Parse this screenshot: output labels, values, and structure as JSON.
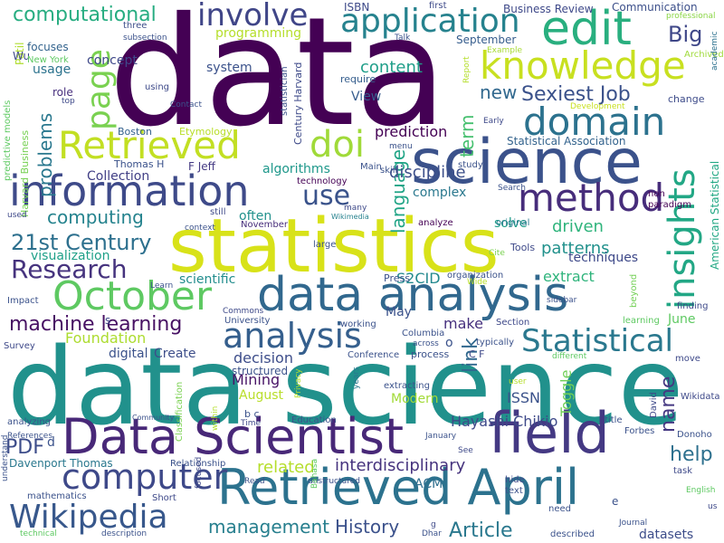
{
  "words": [
    {
      "text": "data",
      "color": "#440154"
    },
    {
      "text": "data science",
      "color": "#21918c"
    },
    {
      "text": "statistics",
      "color": "#d8e219"
    },
    {
      "text": "science",
      "color": "#3b528b"
    },
    {
      "text": "data analysis",
      "color": "#31688e"
    },
    {
      "text": "Retrieved April",
      "color": "#2c728e"
    },
    {
      "text": "Data Scientist",
      "color": "#482878"
    },
    {
      "text": "field",
      "color": "#443983"
    },
    {
      "text": "information",
      "color": "#3e4a89"
    },
    {
      "text": "Retrieved",
      "color": "#c2df23"
    },
    {
      "text": "October",
      "color": "#5ec962"
    },
    {
      "text": "knowledge",
      "color": "#c8e020"
    },
    {
      "text": "application",
      "color": "#26828e"
    },
    {
      "text": "edit",
      "color": "#29af7f"
    },
    {
      "text": "domain",
      "color": "#2c728e"
    },
    {
      "text": "method",
      "color": "#472d7b"
    },
    {
      "text": "involve",
      "color": "#404688"
    },
    {
      "text": "computer",
      "color": "#3e4989"
    },
    {
      "text": "Wikipedia",
      "color": "#38588c"
    },
    {
      "text": "analysis",
      "color": "#355f8d"
    },
    {
      "text": "Statistical",
      "color": "#2a788e"
    },
    {
      "text": "Research",
      "color": "#46337e"
    },
    {
      "text": "doi",
      "color": "#a0da39"
    },
    {
      "text": "insights",
      "color": "#22a785"
    },
    {
      "text": "page",
      "color": "#7ad151"
    },
    {
      "text": "use",
      "color": "#3a538b"
    },
    {
      "text": "machine learning",
      "color": "#471063"
    },
    {
      "text": "21st Century",
      "color": "#2d708e"
    },
    {
      "text": "Big",
      "color": "#3f4788"
    },
    {
      "text": "Sexiest Job",
      "color": "#3b528b"
    },
    {
      "text": "computational",
      "color": "#27ad81"
    },
    {
      "text": "Article",
      "color": "#2a788e"
    },
    {
      "text": "History",
      "color": "#3b518b"
    },
    {
      "text": "management",
      "color": "#277f8e"
    },
    {
      "text": "PDF",
      "color": "#3d4d8a"
    },
    {
      "text": "related",
      "color": "#b5de2b"
    },
    {
      "text": "interdisciplinary",
      "color": "#46337e"
    },
    {
      "text": "name",
      "color": "#453882"
    },
    {
      "text": "help",
      "color": "#2d708e"
    },
    {
      "text": "term",
      "color": "#46c06f"
    },
    {
      "text": "language",
      "color": "#20a486"
    },
    {
      "text": "problems",
      "color": "#2a788e"
    },
    {
      "text": "computing",
      "color": "#25838e"
    },
    {
      "text": "new",
      "color": "#31688e"
    },
    {
      "text": "content",
      "color": "#1f9e89"
    },
    {
      "text": "Collection",
      "color": "#424086"
    },
    {
      "text": "visualization",
      "color": "#1fa088"
    },
    {
      "text": "discipline",
      "color": "#3c4f8a"
    },
    {
      "text": "prediction",
      "color": "#440154"
    },
    {
      "text": "complex",
      "color": "#2a788e"
    },
    {
      "text": "driven",
      "color": "#2fb47c"
    },
    {
      "text": "patterns",
      "color": "#21918c"
    },
    {
      "text": "techniques",
      "color": "#3e4989"
    },
    {
      "text": "extract",
      "color": "#2fb47c"
    },
    {
      "text": "S2CID",
      "color": "#23898e"
    },
    {
      "text": "Foundation",
      "color": "#addc30"
    },
    {
      "text": "Create",
      "color": "#3d4e8a"
    },
    {
      "text": "decision",
      "color": "#3d4d8a"
    },
    {
      "text": "Mining",
      "color": "#481467"
    },
    {
      "text": "August",
      "color": "#b8de29"
    },
    {
      "text": "link",
      "color": "#31688e"
    },
    {
      "text": "make",
      "color": "#46307e"
    },
    {
      "text": "Modern",
      "color": "#a2da37"
    },
    {
      "text": "ISSN",
      "color": "#3b528b"
    },
    {
      "text": "Toggle",
      "color": "#70cf57"
    },
    {
      "text": "Hayashi Chikio",
      "color": "#3e4989"
    },
    {
      "text": "Davenport Thomas",
      "color": "#2a788e"
    },
    {
      "text": "ACM",
      "color": "#2e6e8e"
    },
    {
      "text": "datasets",
      "color": "#3d4d8a"
    },
    {
      "text": "concept",
      "color": "#3f4889"
    },
    {
      "text": "programming",
      "color": "#b5de2b"
    },
    {
      "text": "system",
      "color": "#3b528b"
    },
    {
      "text": "usage",
      "color": "#2c738e"
    },
    {
      "text": "View",
      "color": "#365c8d"
    },
    {
      "text": "algorithms",
      "color": "#1f988b"
    },
    {
      "text": "often",
      "color": "#21918c"
    },
    {
      "text": "solve",
      "color": "#1f9e89"
    },
    {
      "text": "scientific",
      "color": "#228d8d"
    },
    {
      "text": "digital",
      "color": "#3b528b"
    },
    {
      "text": "structured",
      "color": "#3b528b"
    },
    {
      "text": "June",
      "color": "#5ec962"
    },
    {
      "text": "May",
      "color": "#3b528b"
    },
    {
      "text": "Communication",
      "color": "#3c4f8a"
    },
    {
      "text": "Business Review",
      "color": "#3e4989"
    },
    {
      "text": "ISBN",
      "color": "#3e4a89"
    },
    {
      "text": "September",
      "color": "#365d8d"
    },
    {
      "text": "focuses",
      "color": "#33638d"
    },
    {
      "text": "Patil",
      "color": "#b0dd2f"
    },
    {
      "text": "Wu",
      "color": "#3e4989"
    },
    {
      "text": "New York",
      "color": "#5ec962"
    },
    {
      "text": "role",
      "color": "#472f7d"
    },
    {
      "text": "Boston",
      "color": "#34618d"
    },
    {
      "text": "Thomas H",
      "color": "#3b528b"
    },
    {
      "text": "F Jeff",
      "color": "#443a83"
    },
    {
      "text": "Etymology",
      "color": "#b8de29"
    },
    {
      "text": "three",
      "color": "#3d4e8a"
    },
    {
      "text": "subsection",
      "color": "#3b528b"
    },
    {
      "text": "using",
      "color": "#3e4a89"
    },
    {
      "text": "statistician",
      "color": "#3b528b"
    },
    {
      "text": "Century Harvard",
      "color": "#3e4a89"
    },
    {
      "text": "require",
      "color": "#355e8d"
    },
    {
      "text": "Example",
      "color": "#a8db34"
    },
    {
      "text": "Archived",
      "color": "#9fda3a"
    },
    {
      "text": "Development",
      "color": "#c8e020"
    },
    {
      "text": "professional",
      "color": "#8bd646"
    },
    {
      "text": "academic",
      "color": "#2c718e"
    },
    {
      "text": "change",
      "color": "#3e4c8a"
    },
    {
      "text": "American Statistical",
      "color": "#22a884"
    },
    {
      "text": "Statistical Association",
      "color": "#33638d"
    },
    {
      "text": "Harvard Business",
      "color": "#77d153"
    },
    {
      "text": "predictive models",
      "color": "#5ec962"
    },
    {
      "text": "Report",
      "color": "#b5de2b"
    },
    {
      "text": "first",
      "color": "#3e4a89"
    },
    {
      "text": "Talk",
      "color": "#3b528b"
    },
    {
      "text": "Contact",
      "color": "#3b528b"
    },
    {
      "text": "top",
      "color": "#3e4989"
    },
    {
      "text": "Main",
      "color": "#3b528b"
    },
    {
      "text": "skill",
      "color": "#3b528b"
    },
    {
      "text": "study",
      "color": "#3b528b"
    },
    {
      "text": "Early",
      "color": "#3e4989"
    },
    {
      "text": "menu",
      "color": "#3b528b"
    },
    {
      "text": "technology",
      "color": "#440154"
    },
    {
      "text": "Search",
      "color": "#3b528b"
    },
    {
      "text": "non",
      "color": "#440154"
    },
    {
      "text": "paradigm",
      "color": "#440154"
    },
    {
      "text": "many",
      "color": "#3e4989"
    },
    {
      "text": "still",
      "color": "#3e4989"
    },
    {
      "text": "November",
      "color": "#472d7b"
    },
    {
      "text": "context",
      "color": "#3b528b"
    },
    {
      "text": "used",
      "color": "#3e4989"
    },
    {
      "text": "Wikimedia",
      "color": "#26828e"
    },
    {
      "text": "analyze",
      "color": "#440154"
    },
    {
      "text": "original",
      "color": "#2a788e"
    },
    {
      "text": "large",
      "color": "#3b528b"
    },
    {
      "text": "Cite",
      "color": "#7ad151"
    },
    {
      "text": "Tools",
      "color": "#3e4989"
    },
    {
      "text": "Press",
      "color": "#3b528b"
    },
    {
      "text": "organization",
      "color": "#3b528b"
    },
    {
      "text": "Wide",
      "color": "#b8de29"
    },
    {
      "text": "beyond",
      "color": "#73d056"
    },
    {
      "text": "Impact",
      "color": "#3b528b"
    },
    {
      "text": "Learn",
      "color": "#3b528b"
    },
    {
      "text": "Commons",
      "color": "#3e4989"
    },
    {
      "text": "University",
      "color": "#3b528b"
    },
    {
      "text": "Columbia",
      "color": "#3b528b"
    },
    {
      "text": "working",
      "color": "#3b528b"
    },
    {
      "text": "Section",
      "color": "#3e4989"
    },
    {
      "text": "sidebar",
      "color": "#3b528b"
    },
    {
      "text": "finding",
      "color": "#3e4989"
    },
    {
      "text": "learning",
      "color": "#5ec962"
    },
    {
      "text": "Survey",
      "color": "#3e4989"
    },
    {
      "text": "typically",
      "color": "#3b528b"
    },
    {
      "text": "C F",
      "color": "#3e4989"
    },
    {
      "text": "Conference",
      "color": "#3b528b"
    },
    {
      "text": "process",
      "color": "#3b528b"
    },
    {
      "text": "across",
      "color": "#3b528b"
    },
    {
      "text": "different",
      "color": "#5ec962"
    },
    {
      "text": "move",
      "color": "#3e4989"
    },
    {
      "text": "Classification",
      "color": "#7ad151"
    },
    {
      "text": "within",
      "color": "#b5de2b"
    },
    {
      "text": "Privacy",
      "color": "#b5de2b"
    },
    {
      "text": "years",
      "color": "#2a788e"
    },
    {
      "text": "extracting",
      "color": "#3b528b"
    },
    {
      "text": "Wikidata",
      "color": "#3e4989"
    },
    {
      "text": "analyzing",
      "color": "#3b528b"
    },
    {
      "text": "Community",
      "color": "#3b528b"
    },
    {
      "text": "b c",
      "color": "#3b528b"
    },
    {
      "text": "Time",
      "color": "#3e4989"
    },
    {
      "text": "Education",
      "color": "#3b528b"
    },
    {
      "text": "David",
      "color": "#3e4989"
    },
    {
      "text": "title",
      "color": "#3b528b"
    },
    {
      "text": "January",
      "color": "#3b528b"
    },
    {
      "text": "Forbes",
      "color": "#3b528b"
    },
    {
      "text": "Donoho",
      "color": "#3b528b"
    },
    {
      "text": "task",
      "color": "#3e4989"
    },
    {
      "text": "References",
      "color": "#3b528b"
    },
    {
      "text": "Relationship",
      "color": "#3b528b"
    },
    {
      "text": "See",
      "color": "#3e4989"
    },
    {
      "text": "need",
      "color": "#3b528b"
    },
    {
      "text": "described",
      "color": "#3b528b"
    },
    {
      "text": "English",
      "color": "#5ec962"
    },
    {
      "text": "text",
      "color": "#3b528b"
    },
    {
      "text": "hide",
      "color": "#3e4989"
    },
    {
      "text": "Journal",
      "color": "#3b528b"
    },
    {
      "text": "mathematics",
      "color": "#3b528b"
    },
    {
      "text": "Short",
      "color": "#3e4989"
    },
    {
      "text": "focused",
      "color": "#3e4989"
    },
    {
      "text": "Read",
      "color": "#3b528b"
    },
    {
      "text": "unstructured",
      "color": "#3b528b"
    },
    {
      "text": "Bahasa",
      "color": "#5ec962"
    },
    {
      "text": "Dhar",
      "color": "#3b528b"
    },
    {
      "text": "understand",
      "color": "#3b528b"
    },
    {
      "text": "technical",
      "color": "#5ec962"
    },
    {
      "text": "description",
      "color": "#3b528b"
    },
    {
      "text": "us",
      "color": "#3e4989"
    },
    {
      "text": "e",
      "color": "#3b528b"
    },
    {
      "text": "d",
      "color": "#3b528b"
    },
    {
      "text": "g",
      "color": "#3e4989"
    },
    {
      "text": "s",
      "color": "#3e4989"
    },
    {
      "text": "o",
      "color": "#3b528b"
    },
    {
      "text": "user",
      "color": "#b5de2b"
    }
  ]
}
